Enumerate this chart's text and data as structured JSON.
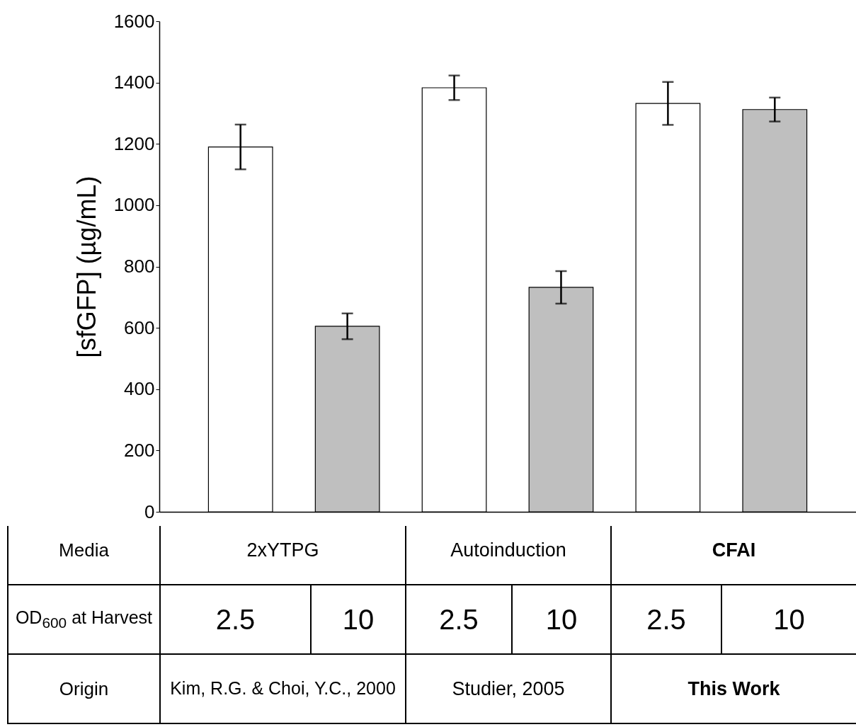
{
  "chart_data": {
    "type": "bar",
    "ylabel": "[sfGFP] (µg/mL)",
    "categories": [
      "2.5",
      "10",
      "2.5",
      "10",
      "2.5",
      "10"
    ],
    "values": [
      1190,
      605,
      1383,
      732,
      1332,
      1312
    ],
    "errors": [
      73,
      42,
      40,
      53,
      70,
      39
    ],
    "colors": [
      "#ffffff",
      "#bfbfbf",
      "#ffffff",
      "#bfbfbf",
      "#ffffff",
      "#bfbfbf"
    ],
    "ylim": [
      0,
      1600
    ],
    "yticks": [
      0,
      200,
      400,
      600,
      800,
      1000,
      1200,
      1400,
      1600
    ],
    "grid": false,
    "annotations": [
      "Media",
      "2xYTPG",
      "Autoinduction",
      "CFAI",
      "OD$_{600}$ at Harvest",
      "Origin",
      "Kim, R.G. & Choi, Y.C., 2000",
      "Studier, 2005",
      "This Work"
    ]
  }
}
